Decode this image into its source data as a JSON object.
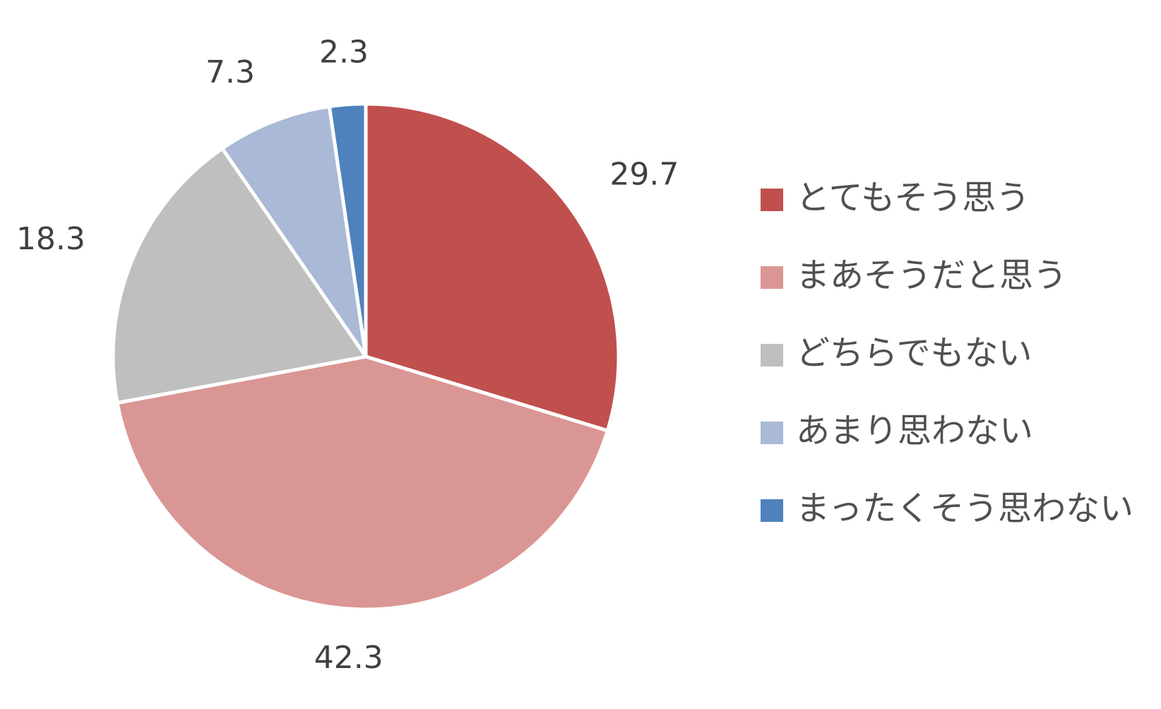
{
  "chart_data": {
    "type": "pie",
    "categories": [
      "とてもそう思う",
      "まあそうだと思う",
      "どちらでもない",
      "あまり思わない",
      "まったくそう思わない"
    ],
    "values": [
      29.7,
      42.3,
      18.3,
      7.3,
      2.3
    ],
    "colors": [
      "#c0504d",
      "#da9694",
      "#bfbfbf",
      "#a9b9d6",
      "#4f81bd"
    ],
    "legend": "right"
  }
}
